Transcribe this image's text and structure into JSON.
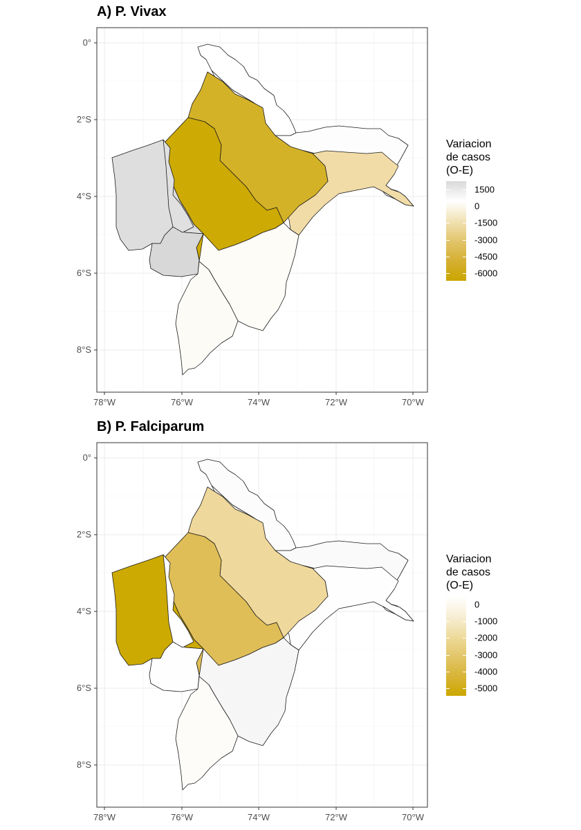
{
  "panels": [
    {
      "title": "A) P. Vivax",
      "legend": {
        "title": [
          "Variacion",
          "de casos",
          "(O-E)"
        ],
        "labels": [
          "1500",
          "0",
          "-1500",
          "-3000",
          "-4500",
          "-6000"
        ],
        "gradient": [
          "#d9d9d9",
          "#ffffff",
          "#f1e2b5",
          "#e2c56b",
          "#d5b033",
          "#caa600"
        ]
      },
      "regions": [
        {
          "id": "north-upper",
          "fill": "#ffffff"
        },
        {
          "id": "north-east",
          "fill": "#fdfdfd"
        },
        {
          "id": "east-tip",
          "fill": "#f1dca8"
        },
        {
          "id": "center-north",
          "fill": "#d4b228"
        },
        {
          "id": "center",
          "fill": "#cdaa04"
        },
        {
          "id": "west",
          "fill": "#dedede"
        },
        {
          "id": "south-west",
          "fill": "#d8d8d8"
        },
        {
          "id": "south",
          "fill": "#fefcf7"
        },
        {
          "id": "far-south",
          "fill": "#fdfbf6"
        },
        {
          "id": "mid-west-strip",
          "fill": "#e0e0e0"
        }
      ]
    },
    {
      "title": "B) P. Falciparum",
      "legend": {
        "title": [
          "Variacion",
          "de casos",
          "(O-E)"
        ],
        "labels": [
          "0",
          "-1000",
          "-2000",
          "-3000",
          "-4000",
          "-5000"
        ],
        "gradient": [
          "#ffffff",
          "#f7efd6",
          "#eedc9e",
          "#e3c66a",
          "#d8b538",
          "#cca700"
        ]
      },
      "regions": [
        {
          "id": "north-upper",
          "fill": "#fcfcfc"
        },
        {
          "id": "north-east",
          "fill": "#fafafa"
        },
        {
          "id": "east-tip",
          "fill": "#fefefe"
        },
        {
          "id": "center-north",
          "fill": "#efd89b"
        },
        {
          "id": "center",
          "fill": "#dfbe57"
        },
        {
          "id": "west",
          "fill": "#ccaa02"
        },
        {
          "id": "south-west",
          "fill": "#fefefe"
        },
        {
          "id": "south",
          "fill": "#f6f6f6"
        },
        {
          "id": "far-south",
          "fill": "#fdfcf8"
        },
        {
          "id": "mid-west-strip",
          "fill": "#ffffff"
        }
      ]
    }
  ],
  "axes": {
    "x_ticks": [
      "78°W",
      "76°W",
      "74°W",
      "72°W",
      "70°W"
    ],
    "y_ticks": [
      "0°",
      "2°S",
      "4°S",
      "6°S",
      "8°S"
    ]
  }
}
